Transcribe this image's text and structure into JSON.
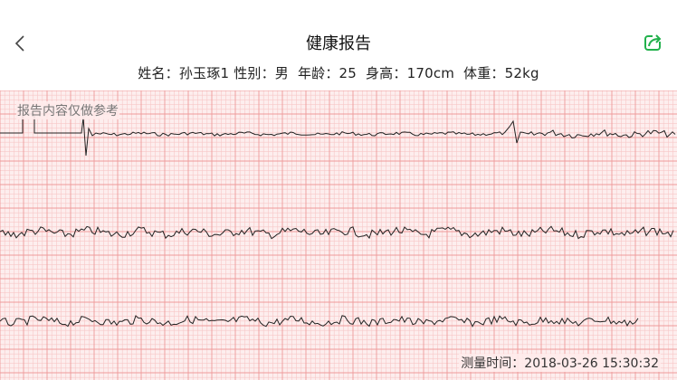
{
  "header": {
    "title": "健康报告",
    "back_icon": "chevron-left-icon",
    "share_icon": "share-icon",
    "share_color": "#22b14c"
  },
  "patient": {
    "name_label": "姓名：",
    "name": "孙玉琢1",
    "gender_label": "性别：",
    "gender": "男",
    "age_label": "年龄：",
    "age": "25",
    "height_label": "身高：",
    "height": "170cm",
    "weight_label": "体重：",
    "weight": "52kg"
  },
  "ecg": {
    "watermark": "报告内容仅做参考",
    "grid_color_fine": "#f7c7c7",
    "grid_color_major": "#ee9a9a",
    "grid_background": "#fdeeee",
    "trace_color": "#222222",
    "lead_count": 3
  },
  "footer": {
    "measure_label": "测量时间：",
    "measure_time": "2018-03-26 15:30:32"
  }
}
